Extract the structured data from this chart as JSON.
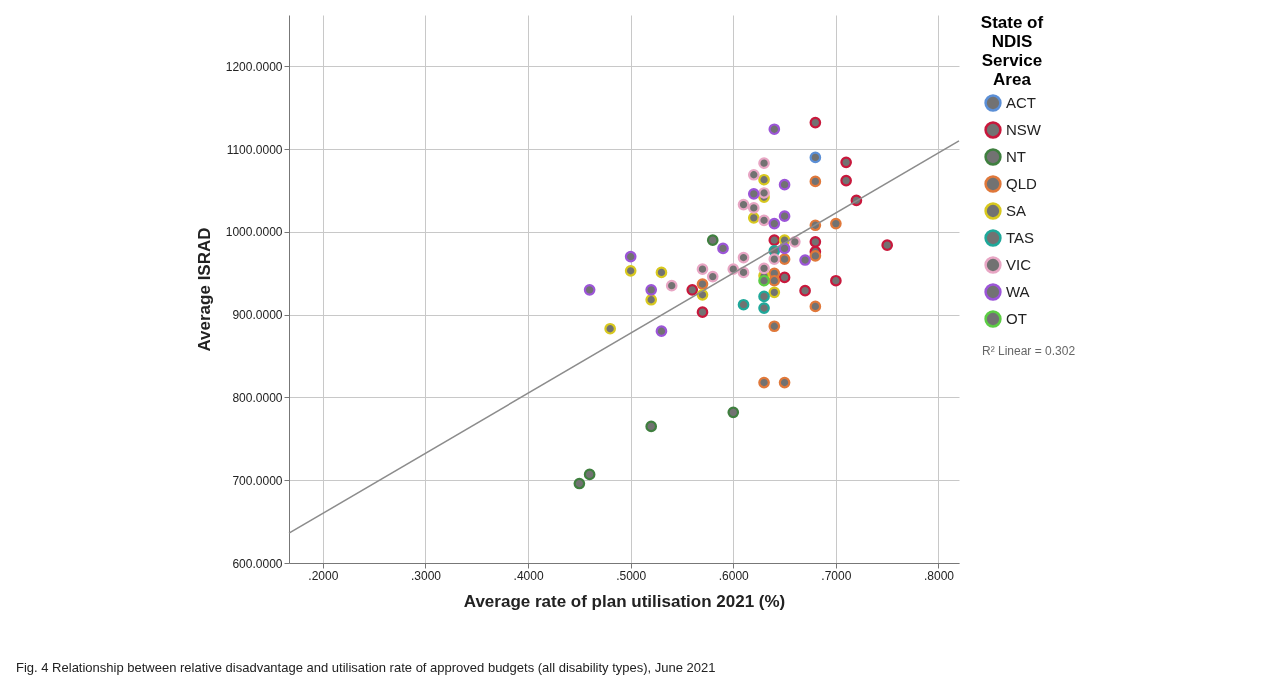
{
  "chart_data": {
    "type": "scatter",
    "xlabel": "Average rate of plan utilisation 2021 (%)",
    "ylabel": "Average ISRAD",
    "legend_title": "State of NDIS Service Area",
    "legend": "top right",
    "grid": true,
    "marker": "circle",
    "xlim": [
      0.167,
      0.82
    ],
    "ylim": [
      600,
      1262
    ],
    "xticks": [
      {
        "value": 0.2,
        "label": ".2000"
      },
      {
        "value": 0.3,
        "label": ".3000"
      },
      {
        "value": 0.4,
        "label": ".4000"
      },
      {
        "value": 0.5,
        "label": ".5000"
      },
      {
        "value": 0.6,
        "label": ".6000"
      },
      {
        "value": 0.7,
        "label": ".7000"
      },
      {
        "value": 0.8,
        "label": ".8000"
      }
    ],
    "yticks": [
      {
        "value": 600,
        "label": "600.0000"
      },
      {
        "value": 700,
        "label": "700.0000"
      },
      {
        "value": 800,
        "label": "800.0000"
      },
      {
        "value": 900,
        "label": "900.0000"
      },
      {
        "value": 1000,
        "label": "1000.0000"
      },
      {
        "value": 1100,
        "label": "1100.0000"
      },
      {
        "value": 1200,
        "label": "1200.0000"
      }
    ],
    "series": [
      {
        "name": "ACT",
        "color": "#5b8fd6",
        "x": [
          0.68
        ],
        "values": [
          1090
        ]
      },
      {
        "name": "NSW",
        "color": "#c8183c",
        "x": [
          0.68,
          0.71,
          0.71,
          0.72,
          0.64,
          0.68,
          0.75,
          0.68,
          0.65,
          0.7,
          0.67,
          0.56,
          0.57
        ],
        "values": [
          1132,
          1084,
          1062,
          1038,
          990,
          988,
          984,
          976,
          945,
          941,
          929,
          930,
          903
        ]
      },
      {
        "name": "NT",
        "color": "#3f7f3f",
        "x": [
          0.58,
          0.45,
          0.46,
          0.52,
          0.6
        ],
        "values": [
          990,
          696,
          707,
          765,
          782
        ]
      },
      {
        "name": "QLD",
        "color": "#e0783a",
        "x": [
          0.68,
          0.68,
          0.7,
          0.68,
          0.65,
          0.64,
          0.64,
          0.57,
          0.68,
          0.64,
          0.63,
          0.65
        ],
        "values": [
          1061,
          1008,
          1010,
          971,
          967,
          950,
          941,
          937,
          910,
          886,
          818,
          818
        ]
      },
      {
        "name": "SA",
        "color": "#d8c81e",
        "x": [
          0.63,
          0.63,
          0.62,
          0.65,
          0.63,
          0.64,
          0.57,
          0.5,
          0.53,
          0.52,
          0.48
        ],
        "values": [
          1063,
          1042,
          1017,
          990,
          947,
          927,
          924,
          953,
          951,
          918,
          883
        ]
      },
      {
        "name": "TAS",
        "color": "#1fa89a",
        "x": [
          0.64,
          0.61,
          0.63,
          0.63
        ],
        "values": [
          977,
          912,
          922,
          908
        ]
      },
      {
        "name": "VIC",
        "color": "#e8a6c4",
        "x": [
          0.63,
          0.62,
          0.63,
          0.61,
          0.62,
          0.63,
          0.66,
          0.61,
          0.64,
          0.57,
          0.6,
          0.58,
          0.61,
          0.63,
          0.54
        ],
        "values": [
          1083,
          1069,
          1047,
          1033,
          1029,
          1014,
          988,
          969,
          967,
          955,
          955,
          946,
          951,
          956,
          935
        ]
      },
      {
        "name": "WA",
        "color": "#9c55d8",
        "x": [
          0.64,
          0.65,
          0.62,
          0.64,
          0.65,
          0.59,
          0.65,
          0.67,
          0.5,
          0.46,
          0.52,
          0.53
        ],
        "values": [
          1124,
          1057,
          1046,
          1010,
          1019,
          980,
          980,
          966,
          970,
          930,
          930,
          880
        ]
      },
      {
        "name": "OT",
        "color": "#5ccc44",
        "x": [
          0.63
        ],
        "values": [
          941
        ]
      },
      {
        "type": "line",
        "marker": "none",
        "color": "#8c8c8c",
        "x": [
          0.167,
          0.82
        ],
        "values": [
          636,
          1110
        ]
      }
    ],
    "annotations": [
      "R² Linear = 0.302",
      "Fig. 4 Relationship between relative disadvantage and utilisation rate of approved budgets (all disability types), June 2021"
    ]
  }
}
